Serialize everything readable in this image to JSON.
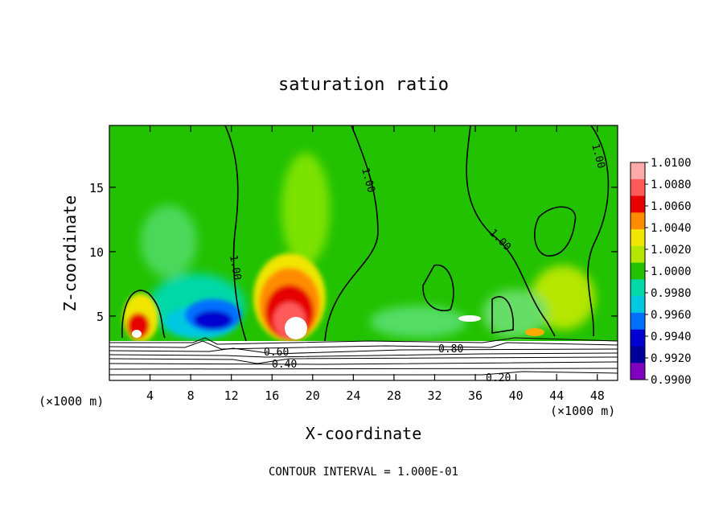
{
  "chart_data": {
    "type": "heatmap",
    "title": "saturation ratio",
    "xlabel": "X-coordinate",
    "ylabel": "Z-coordinate",
    "x_unit": "(×1000 m)",
    "y_unit": "(×1000 m)",
    "xlim": [
      0,
      50
    ],
    "ylim": [
      0,
      19.8
    ],
    "x_ticks": [
      4,
      8,
      12,
      16,
      20,
      24,
      28,
      32,
      36,
      40,
      44,
      48
    ],
    "y_ticks": [
      5,
      10,
      15
    ],
    "footer": "CONTOUR INTERVAL = 1.000E-01",
    "colorbar": {
      "labels": [
        "1.0100",
        "1.0080",
        "1.0060",
        "1.0040",
        "1.0020",
        "1.0000",
        "0.9980",
        "0.9960",
        "0.9940",
        "0.9920",
        "0.9900"
      ],
      "colors": [
        "#ffaaaa",
        "#ff5a5a",
        "#e60000",
        "#ff8c00",
        "#f0e600",
        "#b4e600",
        "#22c200",
        "#00d8a8",
        "#00c8e0",
        "#0070ff",
        "#0000d0",
        "#00009a",
        "#8000c0"
      ]
    },
    "contour_labels": [
      "1.00",
      "1.00",
      "1.00",
      "1.00",
      "0.80",
      "0.60",
      "0.40",
      "0.20"
    ]
  }
}
